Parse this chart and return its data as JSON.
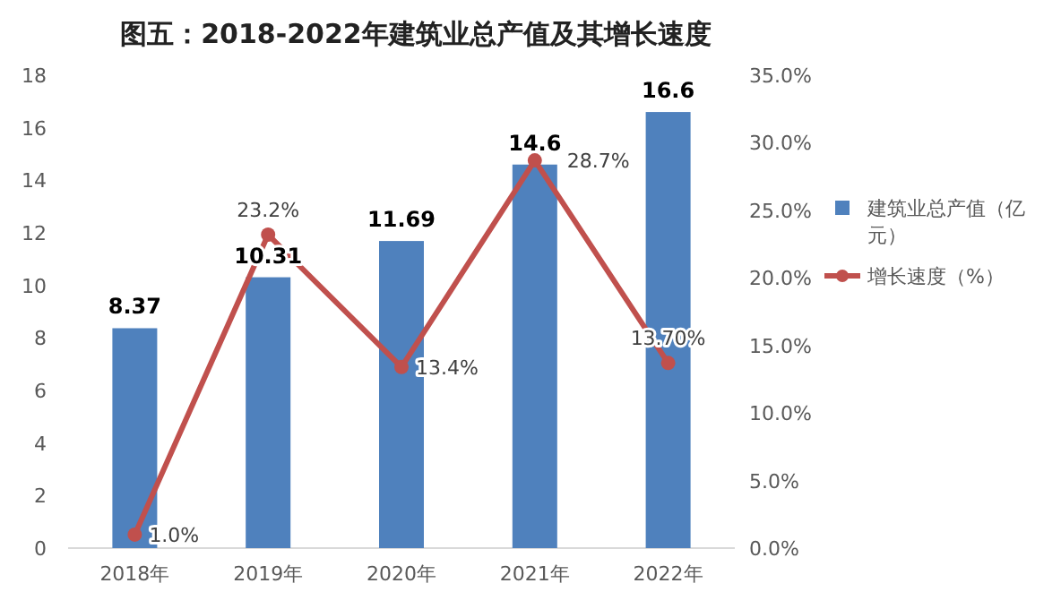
{
  "chart_data": {
    "type": "bar",
    "title": "图五：2018-2022年建筑业总产值及其增长速度",
    "categories": [
      "2018年",
      "2019年",
      "2020年",
      "2021年",
      "2022年"
    ],
    "series": [
      {
        "name": "建筑业总产值（亿元）",
        "color": "#4f81bd",
        "values": [
          8.37,
          10.31,
          11.69,
          14.6,
          16.6
        ],
        "value_labels": [
          "8.37",
          "10.31",
          "11.69",
          "14.6",
          "16.6"
        ]
      },
      {
        "name": "增长速度（%）",
        "type": "line",
        "axis": "y2",
        "color": "#c0504d",
        "values": [
          1.0,
          23.2,
          13.4,
          28.7,
          13.7
        ],
        "value_labels": [
          "1.0%",
          "23.2%",
          "13.4%",
          "28.7%",
          "13.70%"
        ]
      }
    ],
    "marker": "circle",
    "ylim": [
      0,
      18
    ],
    "yticks": [
      0,
      2,
      4,
      6,
      8,
      10,
      12,
      14,
      16,
      18
    ],
    "y2lim": [
      0,
      35
    ],
    "y2ticks": [
      {
        "value": 0,
        "label": "0.0%"
      },
      {
        "value": 5,
        "label": "5.0%"
      },
      {
        "value": 10,
        "label": "10.0%"
      },
      {
        "value": 15,
        "label": "15.0%"
      },
      {
        "value": 20,
        "label": "20.0%"
      },
      {
        "value": 25,
        "label": "25.0%"
      },
      {
        "value": 30,
        "label": "30.0%"
      },
      {
        "value": 35,
        "label": "35.0%"
      }
    ],
    "legend": "right",
    "grid": false
  }
}
